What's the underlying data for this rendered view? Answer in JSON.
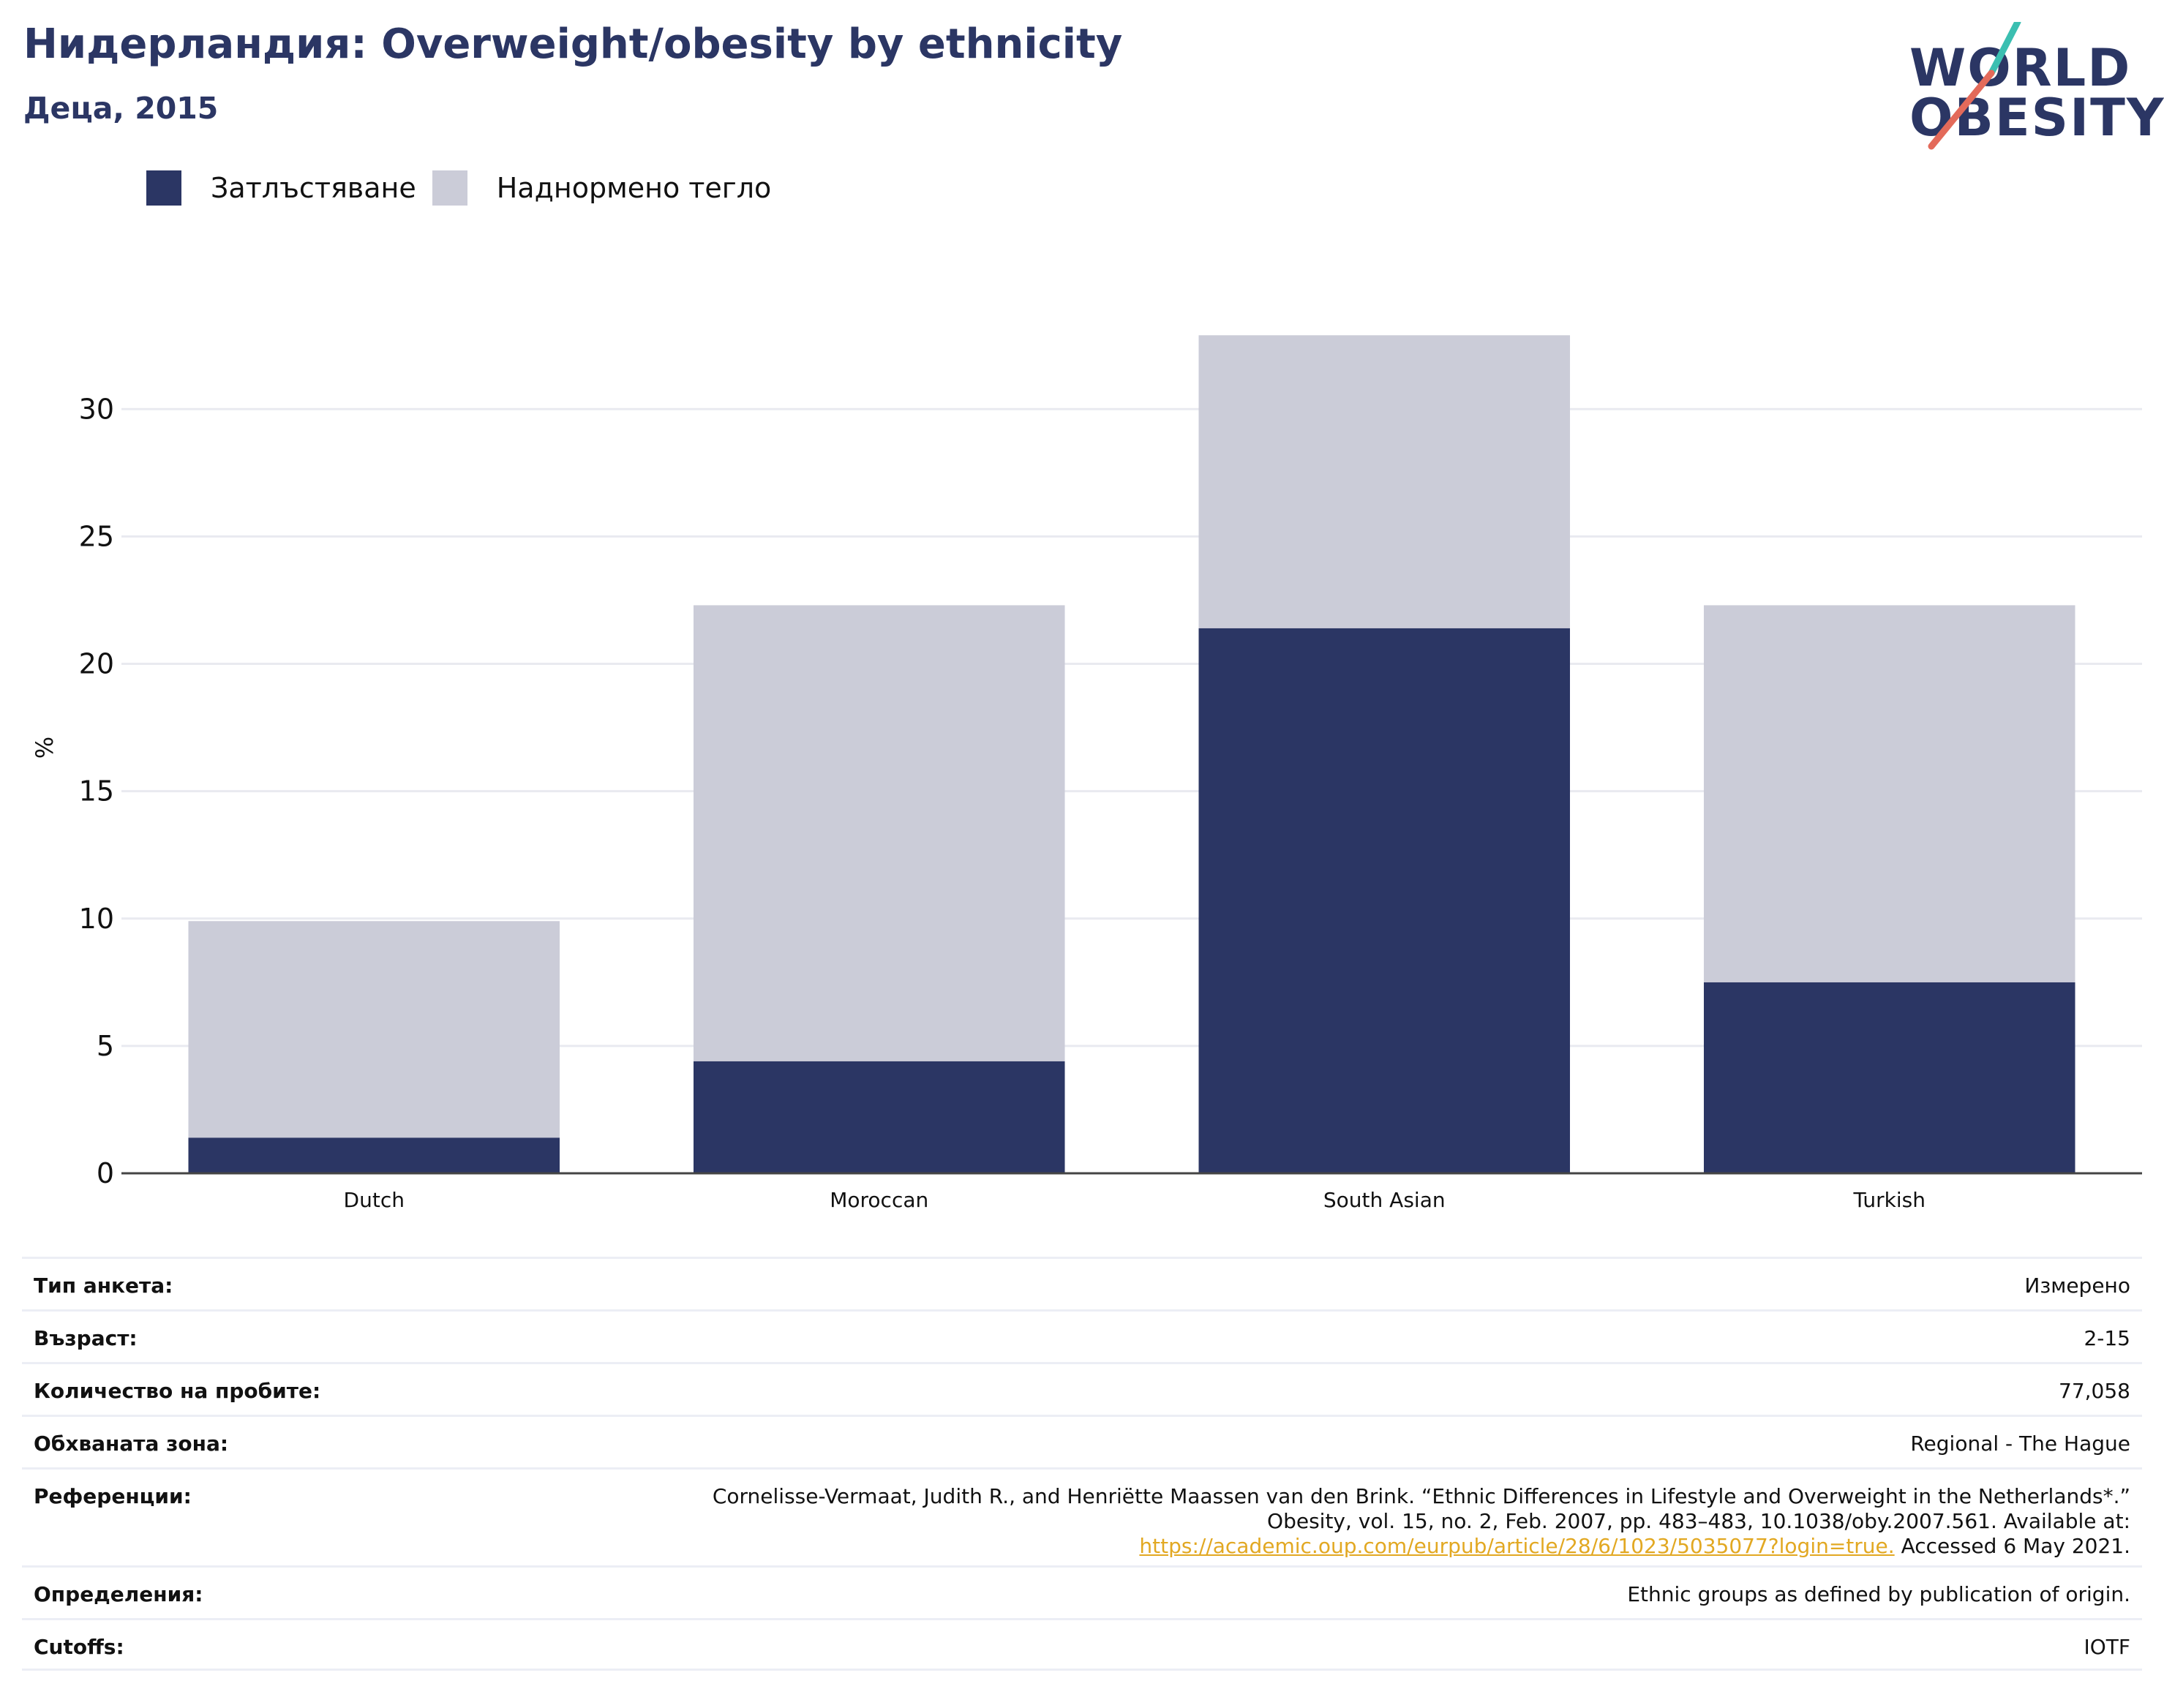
{
  "header": {
    "title": "Нидерландия: Overweight/obesity by ethnicity",
    "subtitle": "Деца, 2015"
  },
  "logo": {
    "line1": "WORLD",
    "line2": "OBESITY",
    "accent_colors": [
      "#3bbfb1",
      "#e36a5a"
    ]
  },
  "chart_data": {
    "type": "bar",
    "stacked": true,
    "categories": [
      "Dutch",
      "Moroccan",
      "South Asian",
      "Turkish"
    ],
    "series": [
      {
        "name": "Затлъстяване",
        "color": "#2b3664",
        "values": [
          1.4,
          4.4,
          21.4,
          7.5
        ]
      },
      {
        "name": "Наднормено тегло",
        "color": "#cbccd8",
        "values": [
          8.5,
          17.9,
          11.5,
          14.8
        ]
      }
    ],
    "ylabel": "%",
    "ylim": [
      0,
      34
    ],
    "yticks": [
      0,
      5,
      10,
      15,
      20,
      25,
      30
    ],
    "grid": true,
    "legend": "top-left"
  },
  "info": {
    "survey_type": {
      "label": "Тип анкета:",
      "value": "Измерено"
    },
    "age": {
      "label": "Възраст:",
      "value": "2-15"
    },
    "sample_size": {
      "label": "Количество на пробите:",
      "value": "77,058"
    },
    "area": {
      "label": "Обхваната зона:",
      "value": "Regional - The Hague"
    },
    "references": {
      "label": "Референции:",
      "line1": "Cornelisse-Vermaat, Judith R., and Henriëtte Maassen van den Brink. “Ethnic Differences in Lifestyle and Overweight in the Netherlands*.”",
      "line2": "Obesity, vol. 15, no. 2, Feb. 2007, pp. 483–483, 10.1038/oby.2007.561. Available at:",
      "link": "https://academic.oup.com/eurpub/article/28/6/1023/5035077?login=true.",
      "accessed": " Accessed 6 May 2021."
    },
    "definitions": {
      "label": "Определения:",
      "value": "Ethnic groups as defined by publication of origin."
    },
    "cutoffs": {
      "label": "Cutoffs:",
      "value": "IOTF"
    }
  }
}
